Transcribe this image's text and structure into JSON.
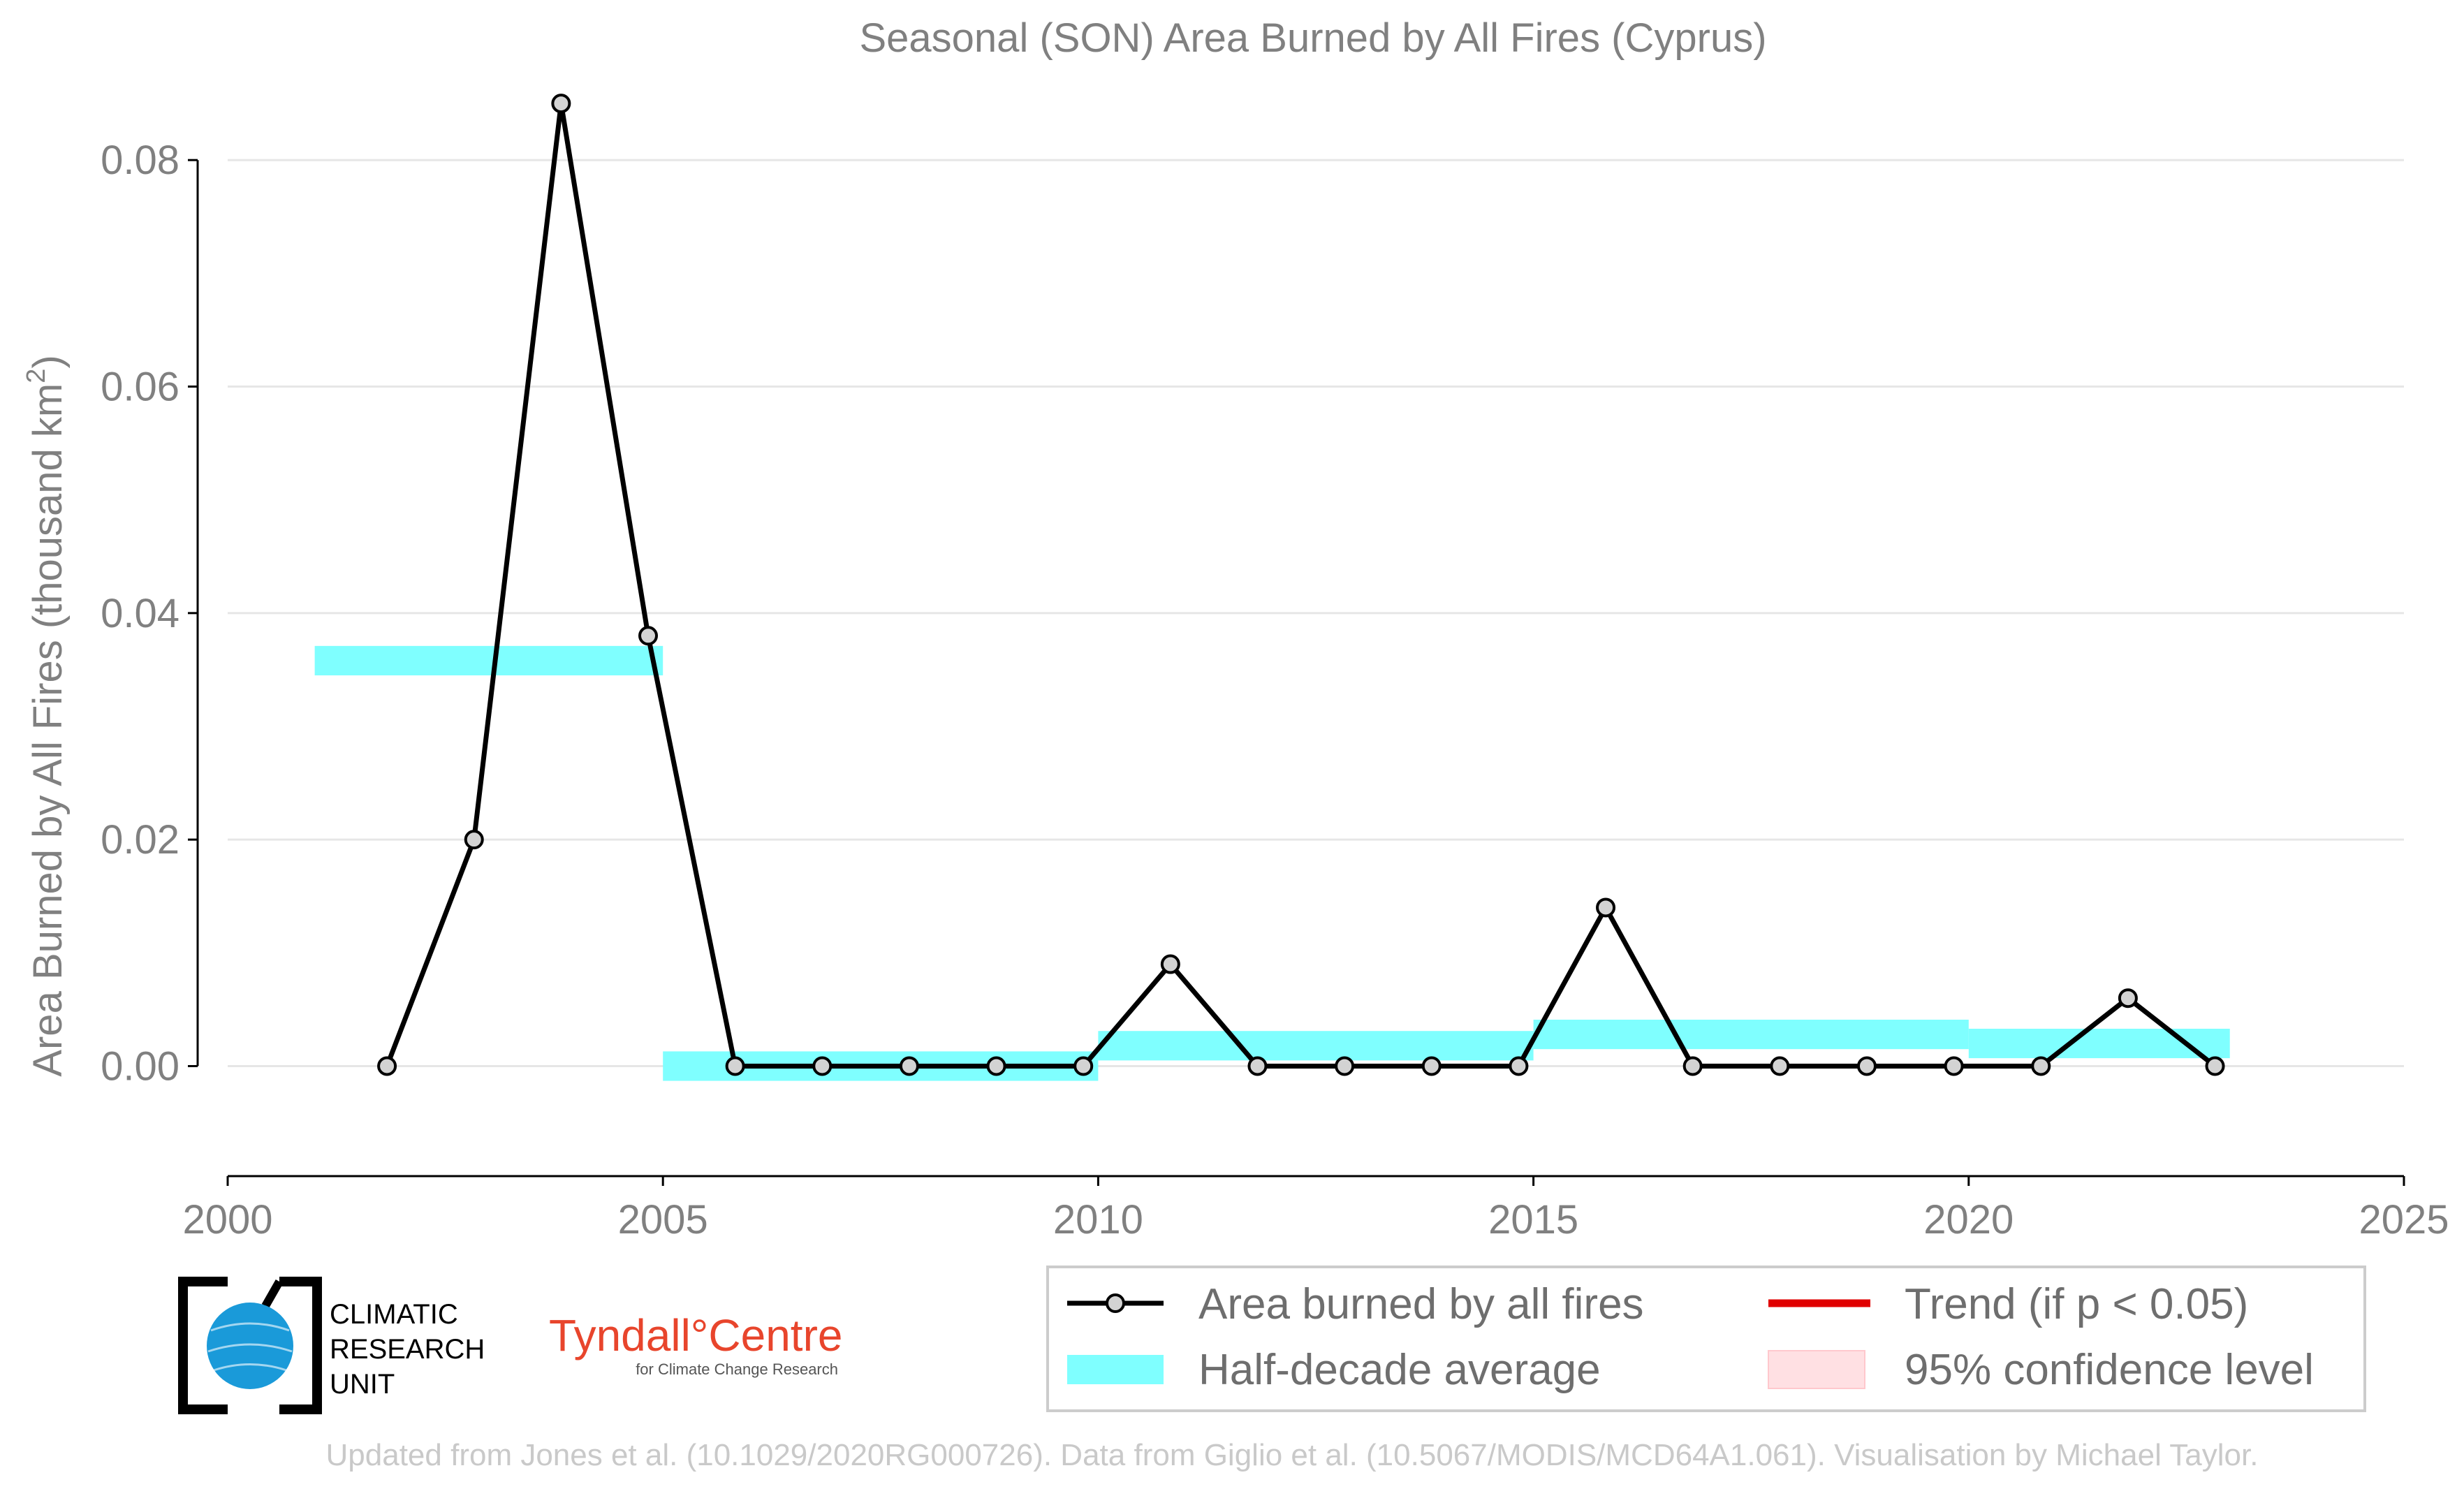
{
  "chart_data": {
    "type": "line",
    "title": "Seasonal (SON) Area Burned by All Fires (Cyprus)",
    "ylabel": "Area Burned by All Fires (thousand km²)",
    "ylabel_main": "Area Burned by All Fires (thousand km",
    "ylabel_sup": "2",
    "ylabel_end": ")",
    "xlim": [
      2000,
      2025
    ],
    "ylim": [
      -0.007,
      0.0855
    ],
    "x_ticks": [
      2000,
      2005,
      2010,
      2015,
      2020,
      2025
    ],
    "x_tick_labels": [
      "2000",
      "2005",
      "2010",
      "2015",
      "2020",
      "2025"
    ],
    "y_ticks": [
      0.0,
      0.02,
      0.04,
      0.06,
      0.08
    ],
    "y_tick_labels": [
      "0.00",
      "0.02",
      "0.04",
      "0.06",
      "0.08"
    ],
    "grid": "horizontal",
    "series": [
      {
        "name": "Area burned by all fires",
        "type": "line",
        "color": "#000000",
        "marker_color": "#d3d3d3",
        "x": [
          2001.83,
          2002.83,
          2003.83,
          2004.83,
          2005.83,
          2006.83,
          2007.83,
          2008.83,
          2009.83,
          2010.83,
          2011.83,
          2012.83,
          2013.83,
          2014.83,
          2015.83,
          2016.83,
          2017.83,
          2018.83,
          2019.83,
          2020.83,
          2021.83,
          2022.83
        ],
        "y": [
          0.0,
          0.02,
          0.085,
          0.038,
          0.0,
          0.0,
          0.0,
          0.0,
          0.0,
          0.009,
          0.0,
          0.0,
          0.0,
          0.0,
          0.014,
          0.0,
          0.0,
          0.0,
          0.0,
          0.0,
          0.006,
          0.0
        ]
      },
      {
        "name": "Half-decade average",
        "type": "band",
        "color": "#7fffff",
        "segments": [
          {
            "x0": 2001.0,
            "x1": 2005.0,
            "y": 0.0358
          },
          {
            "x0": 2005.0,
            "x1": 2010.0,
            "y": 0.0
          },
          {
            "x0": 2010.0,
            "x1": 2015.0,
            "y": 0.0018
          },
          {
            "x0": 2015.0,
            "x1": 2020.0,
            "y": 0.0028
          },
          {
            "x0": 2020.0,
            "x1": 2023.0,
            "y": 0.002
          }
        ]
      }
    ],
    "legend": {
      "placement": "bottom-right",
      "entries": [
        {
          "label": "Area burned by all fires",
          "kind": "line-marker",
          "color": "#000000"
        },
        {
          "label": "Trend (if p < 0.05)",
          "kind": "line",
          "color": "#e00000"
        },
        {
          "label": "Half-decade average",
          "kind": "band",
          "color": "#7fffff"
        },
        {
          "label": "95% confidence level",
          "kind": "patch",
          "color": "#ffe0e3"
        }
      ]
    }
  },
  "logos": {
    "cru_lines": [
      "CLIMATIC",
      "RESEARCH",
      "UNIT"
    ],
    "tyndall_main": "Tyndall°Centre",
    "tyndall_sub": "for Climate Change Research"
  },
  "footer": "Updated from Jones et al. (10.1029/2020RG000726). Data from Giglio et al. (10.5067/MODIS/MCD64A1.061). Visualisation by Michael Taylor.",
  "colors": {
    "text_gray": "#808080",
    "grid": "#e6e6e6",
    "series_line": "#000000",
    "half_decade": "#7fffff",
    "trend": "#e00000",
    "confidence": "#ffe0e3",
    "cru_blue": "#1a9ad9",
    "tyndall_red": "#e8452c"
  }
}
